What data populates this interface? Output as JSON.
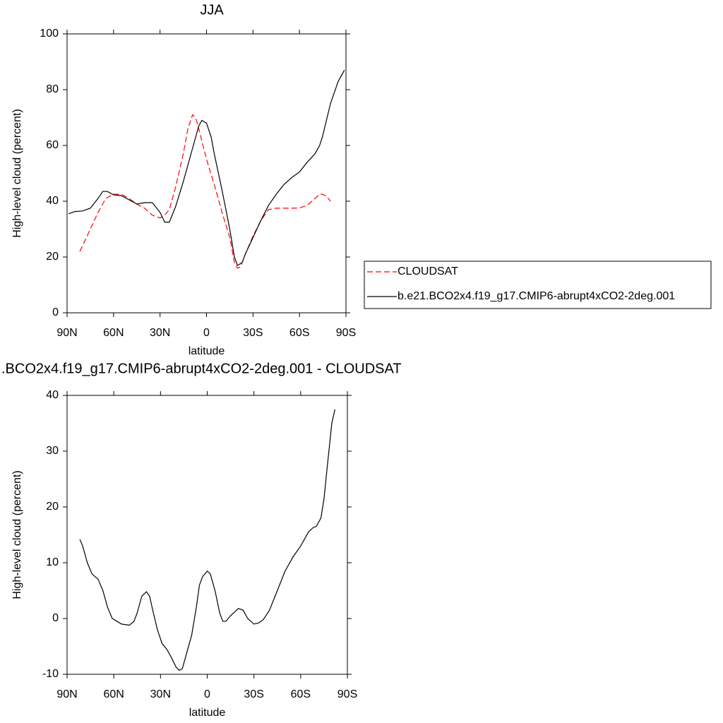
{
  "chart_data": [
    {
      "type": "line",
      "title": "JJA",
      "xlabel": "latitude",
      "ylabel": "High-level cloud (percent)",
      "xlim": [
        90,
        -90
      ],
      "ylim": [
        0,
        100
      ],
      "xticks": [
        {
          "value": 90,
          "label": "90N"
        },
        {
          "value": 60,
          "label": "60N"
        },
        {
          "value": 30,
          "label": "30N"
        },
        0,
        {
          "value": -30,
          "label": "30S"
        },
        {
          "value": -60,
          "label": "60S"
        },
        {
          "value": -90,
          "label": "90S"
        }
      ],
      "yticks": [
        0,
        20,
        40,
        60,
        80,
        100
      ],
      "legend": "right",
      "series": [
        {
          "name": "CLOUDSAT",
          "color": "#ff0000",
          "line_style": "dashed",
          "x": [
            81.8,
            80,
            75,
            70,
            65,
            60,
            55,
            50,
            45,
            40,
            35,
            30,
            27,
            24,
            20,
            15,
            12,
            9,
            7,
            5,
            0,
            -5,
            -10,
            -15,
            -18,
            -20,
            -22,
            -25,
            -30,
            -35,
            -40,
            -45,
            -50,
            -55,
            -60,
            -65,
            -70,
            -73,
            -75,
            -78,
            -80
          ],
          "values": [
            22,
            24,
            30,
            36,
            41,
            42.5,
            42.5,
            41,
            39,
            37.5,
            35,
            34,
            35,
            37,
            45,
            57,
            66,
            71,
            70,
            66,
            55,
            46,
            36,
            27,
            18,
            16,
            16.5,
            21,
            27.5,
            33,
            37,
            37.5,
            37.5,
            37.5,
            37.6,
            38.5,
            41,
            42.5,
            42.5,
            41.5,
            40
          ]
        },
        {
          "name": "b.e21.BCO2x4.f19_g17.CMIP6-abrupt4xCO2-2deg.001",
          "color": "#000000",
          "line_style": "solid",
          "x": [
            89,
            85,
            80,
            75,
            70,
            67,
            64,
            60,
            55,
            50,
            45,
            40,
            35,
            30,
            27,
            24,
            20,
            15,
            10,
            5,
            3,
            0,
            -3,
            -5,
            -10,
            -15,
            -18,
            -20,
            -23,
            -25,
            -30,
            -35,
            -40,
            -45,
            -50,
            -55,
            -60,
            -65,
            -70,
            -73,
            -75,
            -80,
            -85,
            -89
          ],
          "values": [
            35.5,
            36.3,
            36.5,
            37.5,
            41,
            43.5,
            43.5,
            42.3,
            42,
            40.5,
            39,
            39.5,
            39.5,
            36,
            32.5,
            32.5,
            38,
            47,
            57,
            67,
            69,
            68,
            63,
            57,
            44,
            30,
            20,
            17,
            18,
            21,
            27,
            33,
            38.5,
            42.5,
            46,
            48.5,
            50.5,
            54,
            57,
            60,
            63.5,
            75,
            83,
            87
          ]
        }
      ]
    },
    {
      "type": "line",
      "title": ".BCO2x4.f19_g17.CMIP6-abrupt4xCO2-2deg.001 - CLOUDSAT",
      "xlabel": "latitude",
      "ylabel": "High-level cloud (percent)",
      "xlim": [
        90,
        -90
      ],
      "ylim": [
        -10,
        40
      ],
      "xticks": [
        {
          "value": 90,
          "label": "90N"
        },
        {
          "value": 60,
          "label": "60N"
        },
        {
          "value": 30,
          "label": "30N"
        },
        0,
        {
          "value": -30,
          "label": "30S"
        },
        {
          "value": -60,
          "label": "60S"
        },
        {
          "value": -90,
          "label": "90S"
        }
      ],
      "yticks": [
        -10,
        0,
        10,
        20,
        30,
        40
      ],
      "color": "#000000",
      "x": [
        81.8,
        80,
        77,
        74,
        70,
        67,
        64,
        61,
        58,
        55,
        50,
        47,
        45,
        42,
        39,
        37,
        35,
        32,
        29,
        26,
        23,
        20,
        18,
        16,
        14,
        10,
        7,
        5,
        3,
        0,
        -2,
        -5,
        -8,
        -10,
        -12,
        -15,
        -20,
        -23,
        -26,
        -30,
        -33,
        -36,
        -40,
        -45,
        -50,
        -55,
        -60,
        -65,
        -68,
        -70,
        -73,
        -75,
        -77,
        -80,
        -82
      ],
      "values": [
        14.2,
        13,
        10,
        8,
        7,
        5,
        2,
        0,
        -0.5,
        -1,
        -1.2,
        -0.5,
        1,
        4,
        4.8,
        4,
        1.5,
        -2,
        -4.5,
        -5.5,
        -7,
        -8.7,
        -9.3,
        -9,
        -7,
        -3,
        2,
        6,
        7.5,
        8.5,
        8,
        5,
        1,
        -0.5,
        -0.5,
        0.5,
        1.8,
        1.5,
        0,
        -1,
        -0.8,
        -0.2,
        1.5,
        5,
        8.5,
        11,
        13,
        15.5,
        16.3,
        16.5,
        18,
        21.5,
        27,
        35,
        37.5
      ]
    }
  ]
}
